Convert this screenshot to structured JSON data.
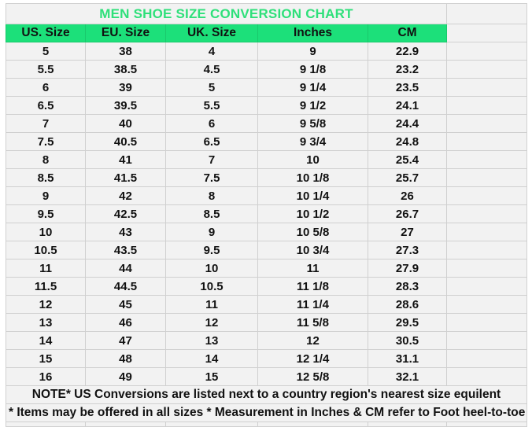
{
  "title": "MEN SHOE SIZE CONVERSION CHART",
  "colors": {
    "header_bg": "#1ce07a",
    "title": "#2ee07a",
    "cell_bg": "#f2f2f2",
    "grid": "#d0d0d0"
  },
  "headers": [
    "US. Size",
    "EU. Size",
    "UK. Size",
    "Inches",
    "CM"
  ],
  "rows": [
    [
      "5",
      "38",
      "4",
      "9",
      "22.9"
    ],
    [
      "5.5",
      "38.5",
      "4.5",
      "9 1/8",
      "23.2"
    ],
    [
      "6",
      "39",
      "5",
      "9 1/4",
      "23.5"
    ],
    [
      "6.5",
      "39.5",
      "5.5",
      "9 1/2",
      "24.1"
    ],
    [
      "7",
      "40",
      "6",
      "9 5/8",
      "24.4"
    ],
    [
      "7.5",
      "40.5",
      "6.5",
      "9 3/4",
      "24.8"
    ],
    [
      "8",
      "41",
      "7",
      "10",
      "25.4"
    ],
    [
      "8.5",
      "41.5",
      "7.5",
      "10 1/8",
      "25.7"
    ],
    [
      "9",
      "42",
      "8",
      "10 1/4",
      "26"
    ],
    [
      "9.5",
      "42.5",
      "8.5",
      "10 1/2",
      "26.7"
    ],
    [
      "10",
      "43",
      "9",
      "10 5/8",
      "27"
    ],
    [
      "10.5",
      "43.5",
      "9.5",
      "10 3/4",
      "27.3"
    ],
    [
      "11",
      "44",
      "10",
      "11",
      "27.9"
    ],
    [
      "11.5",
      "44.5",
      "10.5",
      "11 1/8",
      "28.3"
    ],
    [
      "12",
      "45",
      "11",
      "11 1/4",
      "28.6"
    ],
    [
      "13",
      "46",
      "12",
      "11 5/8",
      "29.5"
    ],
    [
      "14",
      "47",
      "13",
      "12",
      "30.5"
    ],
    [
      "15",
      "48",
      "14",
      "12 1/4",
      "31.1"
    ],
    [
      "16",
      "49",
      "15",
      "12 5/8",
      "32.1"
    ]
  ],
  "note1": "NOTE* US Conversions are listed next to a country region's nearest size equilent",
  "note2": "* Items may be offered in all sizes * Measurement in Inches & CM refer to Foot heel-to-toe"
}
